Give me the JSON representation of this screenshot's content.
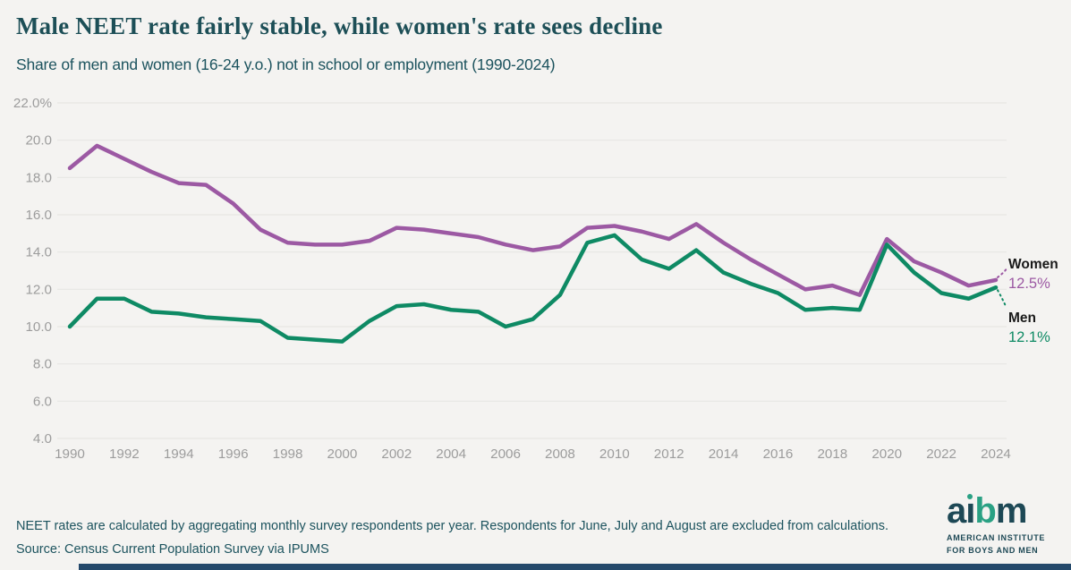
{
  "page": {
    "title": "Male NEET rate fairly stable, while women's rate sees decline",
    "subtitle": "Share of men and women (16-24 y.o.) not in school or employment (1990-2024)"
  },
  "chart_data": {
    "type": "line",
    "title": "Male NEET rate fairly stable, while women's rate sees decline",
    "subtitle": "Share of men and women (16-24 y.o.) not in school or employment (1990-2024)",
    "x": [
      1990,
      1991,
      1992,
      1993,
      1994,
      1995,
      1996,
      1997,
      1998,
      1999,
      2000,
      2001,
      2002,
      2003,
      2004,
      2005,
      2006,
      2007,
      2008,
      2009,
      2010,
      2011,
      2012,
      2013,
      2014,
      2015,
      2016,
      2017,
      2018,
      2019,
      2020,
      2021,
      2022,
      2023,
      2024
    ],
    "series": [
      {
        "name": "Women",
        "color": "#9c59a3",
        "values": [
          18.5,
          19.7,
          19.0,
          18.3,
          17.7,
          17.6,
          16.6,
          15.2,
          14.5,
          14.4,
          14.4,
          14.6,
          15.3,
          15.2,
          15.0,
          14.8,
          14.4,
          14.1,
          14.3,
          15.3,
          15.4,
          15.1,
          14.7,
          15.5,
          14.5,
          13.6,
          12.8,
          12.0,
          12.2,
          11.7,
          14.7,
          13.5,
          12.9,
          12.2,
          12.5
        ]
      },
      {
        "name": "Men",
        "color": "#0e8a64",
        "values": [
          10.0,
          11.5,
          11.5,
          10.8,
          10.7,
          10.5,
          10.4,
          10.3,
          9.4,
          9.3,
          9.2,
          10.3,
          11.1,
          11.2,
          10.9,
          10.8,
          10.0,
          10.4,
          11.7,
          14.5,
          14.9,
          13.6,
          13.1,
          14.1,
          12.9,
          12.3,
          11.8,
          10.9,
          11.0,
          10.9,
          14.4,
          12.9,
          11.8,
          11.5,
          12.1
        ]
      }
    ],
    "y_ticks": [
      {
        "v": 22,
        "label": "22.0%"
      },
      {
        "v": 20,
        "label": "20.0"
      },
      {
        "v": 18,
        "label": "18.0"
      },
      {
        "v": 16,
        "label": "16.0"
      },
      {
        "v": 14,
        "label": "14.0"
      },
      {
        "v": 12,
        "label": "12.0"
      },
      {
        "v": 10,
        "label": "10.0"
      },
      {
        "v": 8,
        "label": "8.0"
      },
      {
        "v": 6,
        "label": "6.0"
      },
      {
        "v": 4,
        "label": "4.0"
      }
    ],
    "x_tick_years": [
      1990,
      1992,
      1994,
      1996,
      1998,
      2000,
      2002,
      2004,
      2006,
      2008,
      2010,
      2012,
      2014,
      2016,
      2018,
      2020,
      2022,
      2024
    ],
    "ylim": [
      4,
      22
    ],
    "grid": true,
    "legend_position": "line-end-labels-right"
  },
  "end_labels": {
    "women": {
      "name": "Women",
      "value": "12.5%"
    },
    "men": {
      "name": "Men",
      "value": "12.1%"
    }
  },
  "footer": {
    "note": "NEET rates are calculated by aggregating monthly survey respondents per year. Respondents for June, July and August are excluded from calculations.",
    "source": "Source: Census Current Population Survey via IPUMS"
  },
  "logo": {
    "word": "aibm",
    "letters": [
      "a",
      "ı",
      "b",
      "m"
    ],
    "line1": "AMERICAN INSTITUTE",
    "line2": "FOR BOYS AND MEN"
  },
  "colors": {
    "women_line": "#9c59a3",
    "men_line": "#0e8a64",
    "title_text": "#1d4f57",
    "axis_text": "#9c9c9c",
    "grid": "#e7e6e3",
    "background": "#f4f3f1",
    "end_label_text": "#1a1a1a",
    "logo_dark": "#1d4855",
    "logo_green": "#2aa184",
    "bottom_bar": "#24496b"
  }
}
